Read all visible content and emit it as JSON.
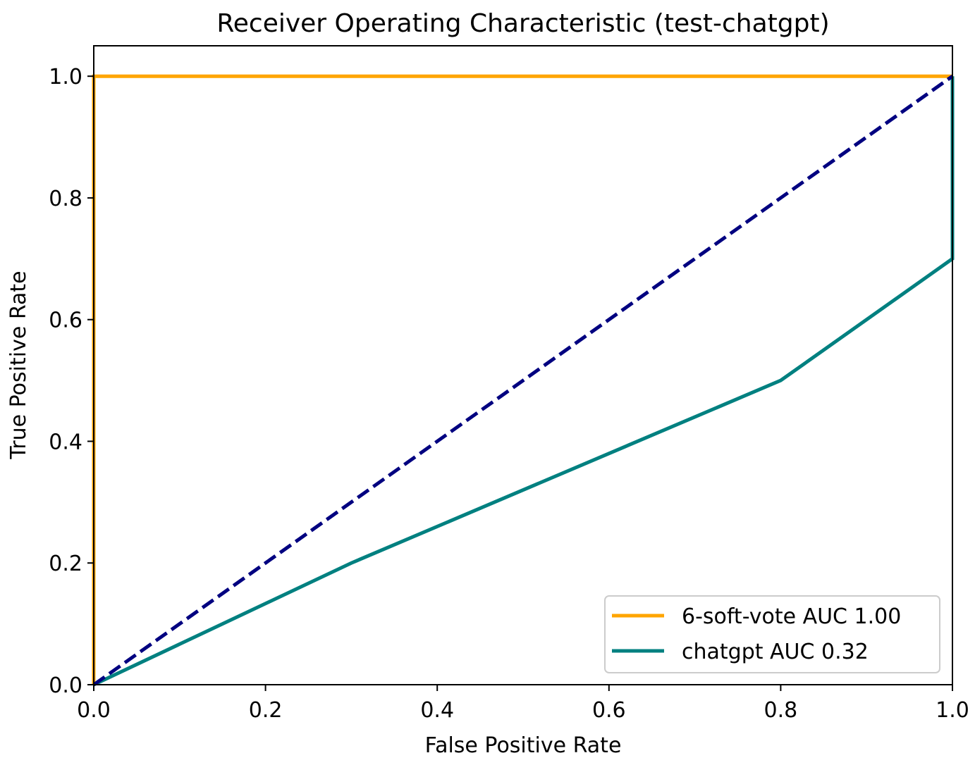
{
  "chart_data": {
    "type": "line",
    "title": "Receiver Operating Characteristic (test-chatgpt)",
    "xlabel": "False Positive Rate",
    "ylabel": "True Positive Rate",
    "xlim": [
      0.0,
      1.0
    ],
    "ylim": [
      0.0,
      1.05
    ],
    "x_ticks": [
      "0.0",
      "0.2",
      "0.4",
      "0.6",
      "0.8",
      "1.0"
    ],
    "y_ticks": [
      "0.0",
      "0.2",
      "0.4",
      "0.6",
      "0.8",
      "1.0"
    ],
    "grid": false,
    "legend_position": "lower-right",
    "series": [
      {
        "name": "6-soft-vote AUC 1.00",
        "color": "#ffa500",
        "style": "solid",
        "x": [
          0.0,
          0.0,
          1.0
        ],
        "y": [
          0.0,
          1.0,
          1.0
        ]
      },
      {
        "name": "chatgpt AUC 0.32",
        "color": "#008080",
        "style": "solid",
        "x": [
          0.0,
          0.3,
          0.8,
          1.0,
          1.0
        ],
        "y": [
          0.0,
          0.2,
          0.5,
          0.7,
          1.0
        ]
      }
    ],
    "reference_line": {
      "color": "#000080",
      "style": "dashed",
      "x": [
        0.0,
        1.0
      ],
      "y": [
        0.0,
        1.0
      ]
    }
  }
}
